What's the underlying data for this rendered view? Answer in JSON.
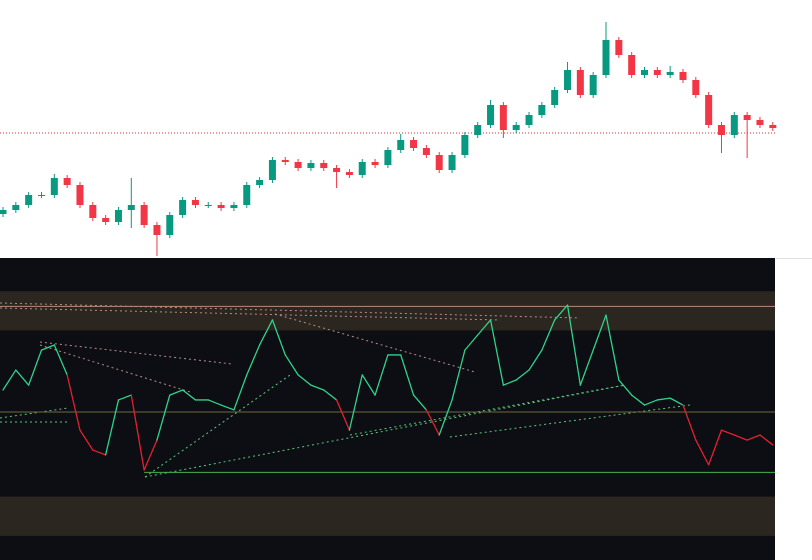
{
  "chart_data": [
    {
      "type": "candlestick",
      "open": [
        44,
        48,
        53,
        63,
        63,
        80,
        73,
        53,
        40,
        36,
        48,
        53,
        33,
        23,
        43,
        58,
        53,
        53,
        50,
        53,
        73,
        78,
        98,
        96,
        90,
        95,
        90,
        86,
        83,
        96,
        93,
        108,
        118,
        110,
        103,
        88,
        103,
        123,
        133,
        153,
        128,
        133,
        143,
        153,
        168,
        188,
        163,
        183,
        218,
        203,
        183,
        188,
        183,
        186,
        178,
        163,
        133,
        123,
        143,
        138,
        133
      ],
      "high": [
        51,
        56,
        66,
        66,
        84,
        83,
        76,
        56,
        43,
        51,
        80,
        56,
        36,
        46,
        61,
        61,
        56,
        56,
        56,
        76,
        81,
        101,
        101,
        99,
        98,
        98,
        93,
        89,
        99,
        99,
        111,
        124,
        121,
        113,
        106,
        106,
        126,
        136,
        158,
        156,
        136,
        146,
        156,
        171,
        196,
        191,
        186,
        236,
        221,
        206,
        191,
        191,
        192,
        189,
        181,
        166,
        136,
        146,
        146,
        141,
        136
      ],
      "low": [
        41,
        45,
        50,
        60,
        60,
        70,
        50,
        37,
        33,
        33,
        30,
        30,
        2,
        20,
        40,
        50,
        50,
        47,
        47,
        50,
        70,
        75,
        93,
        87,
        87,
        87,
        70,
        80,
        80,
        90,
        90,
        105,
        107,
        100,
        85,
        85,
        100,
        120,
        130,
        120,
        125,
        130,
        140,
        150,
        165,
        160,
        160,
        180,
        200,
        180,
        180,
        180,
        180,
        175,
        160,
        130,
        105,
        120,
        100,
        130,
        127
      ],
      "close": [
        48,
        53,
        63,
        63,
        80,
        73,
        53,
        40,
        36,
        48,
        53,
        33,
        23,
        43,
        58,
        53,
        53,
        50,
        53,
        73,
        78,
        98,
        96,
        90,
        95,
        90,
        86,
        83,
        96,
        93,
        108,
        118,
        110,
        103,
        88,
        103,
        123,
        133,
        153,
        128,
        133,
        143,
        153,
        168,
        188,
        163,
        183,
        218,
        203,
        183,
        188,
        183,
        186,
        178,
        163,
        133,
        123,
        143,
        138,
        133,
        130
      ],
      "up_color": "#089981",
      "down_color": "#f23645",
      "ylim": [
        0,
        258
      ],
      "price_line": 125,
      "price_line_color": "#e0303c"
    },
    {
      "type": "line",
      "values": [
        56.3,
        62.9,
        57.9,
        69.5,
        71.2,
        61.3,
        43.0,
        36.4,
        34.8,
        53.0,
        54.6,
        29.8,
        39.7,
        54.6,
        56.3,
        53.0,
        53.0,
        51.3,
        49.7,
        61.3,
        71.2,
        79.5,
        67.9,
        61.3,
        57.9,
        56.3,
        53.0,
        43.0,
        61.3,
        54.6,
        67.9,
        67.9,
        54.6,
        49.7,
        41.4,
        53.0,
        69.5,
        74.5,
        79.5,
        57.9,
        59.6,
        62.9,
        69.5,
        79.5,
        84.4,
        57.9,
        69.5,
        81.1,
        59.6,
        54.6,
        51.3,
        53.0,
        53.6,
        51.3,
        39.7,
        31.5,
        43.0,
        41.4,
        39.7,
        41.4,
        38.1
      ],
      "up_color": "#2fd38a",
      "down_color": "#e3212d",
      "threshold": 49,
      "ylim": [
        0,
        100
      ],
      "bands": [
        [
          76,
          89
        ],
        [
          8,
          21
        ]
      ],
      "band_color": "#2b2620",
      "levels": [
        {
          "value": 84,
          "color": "#b98a7c"
        },
        {
          "value": 49,
          "color": "#6b6a3c"
        },
        {
          "value": 29,
          "color": "#45b050"
        }
      ]
    }
  ]
}
